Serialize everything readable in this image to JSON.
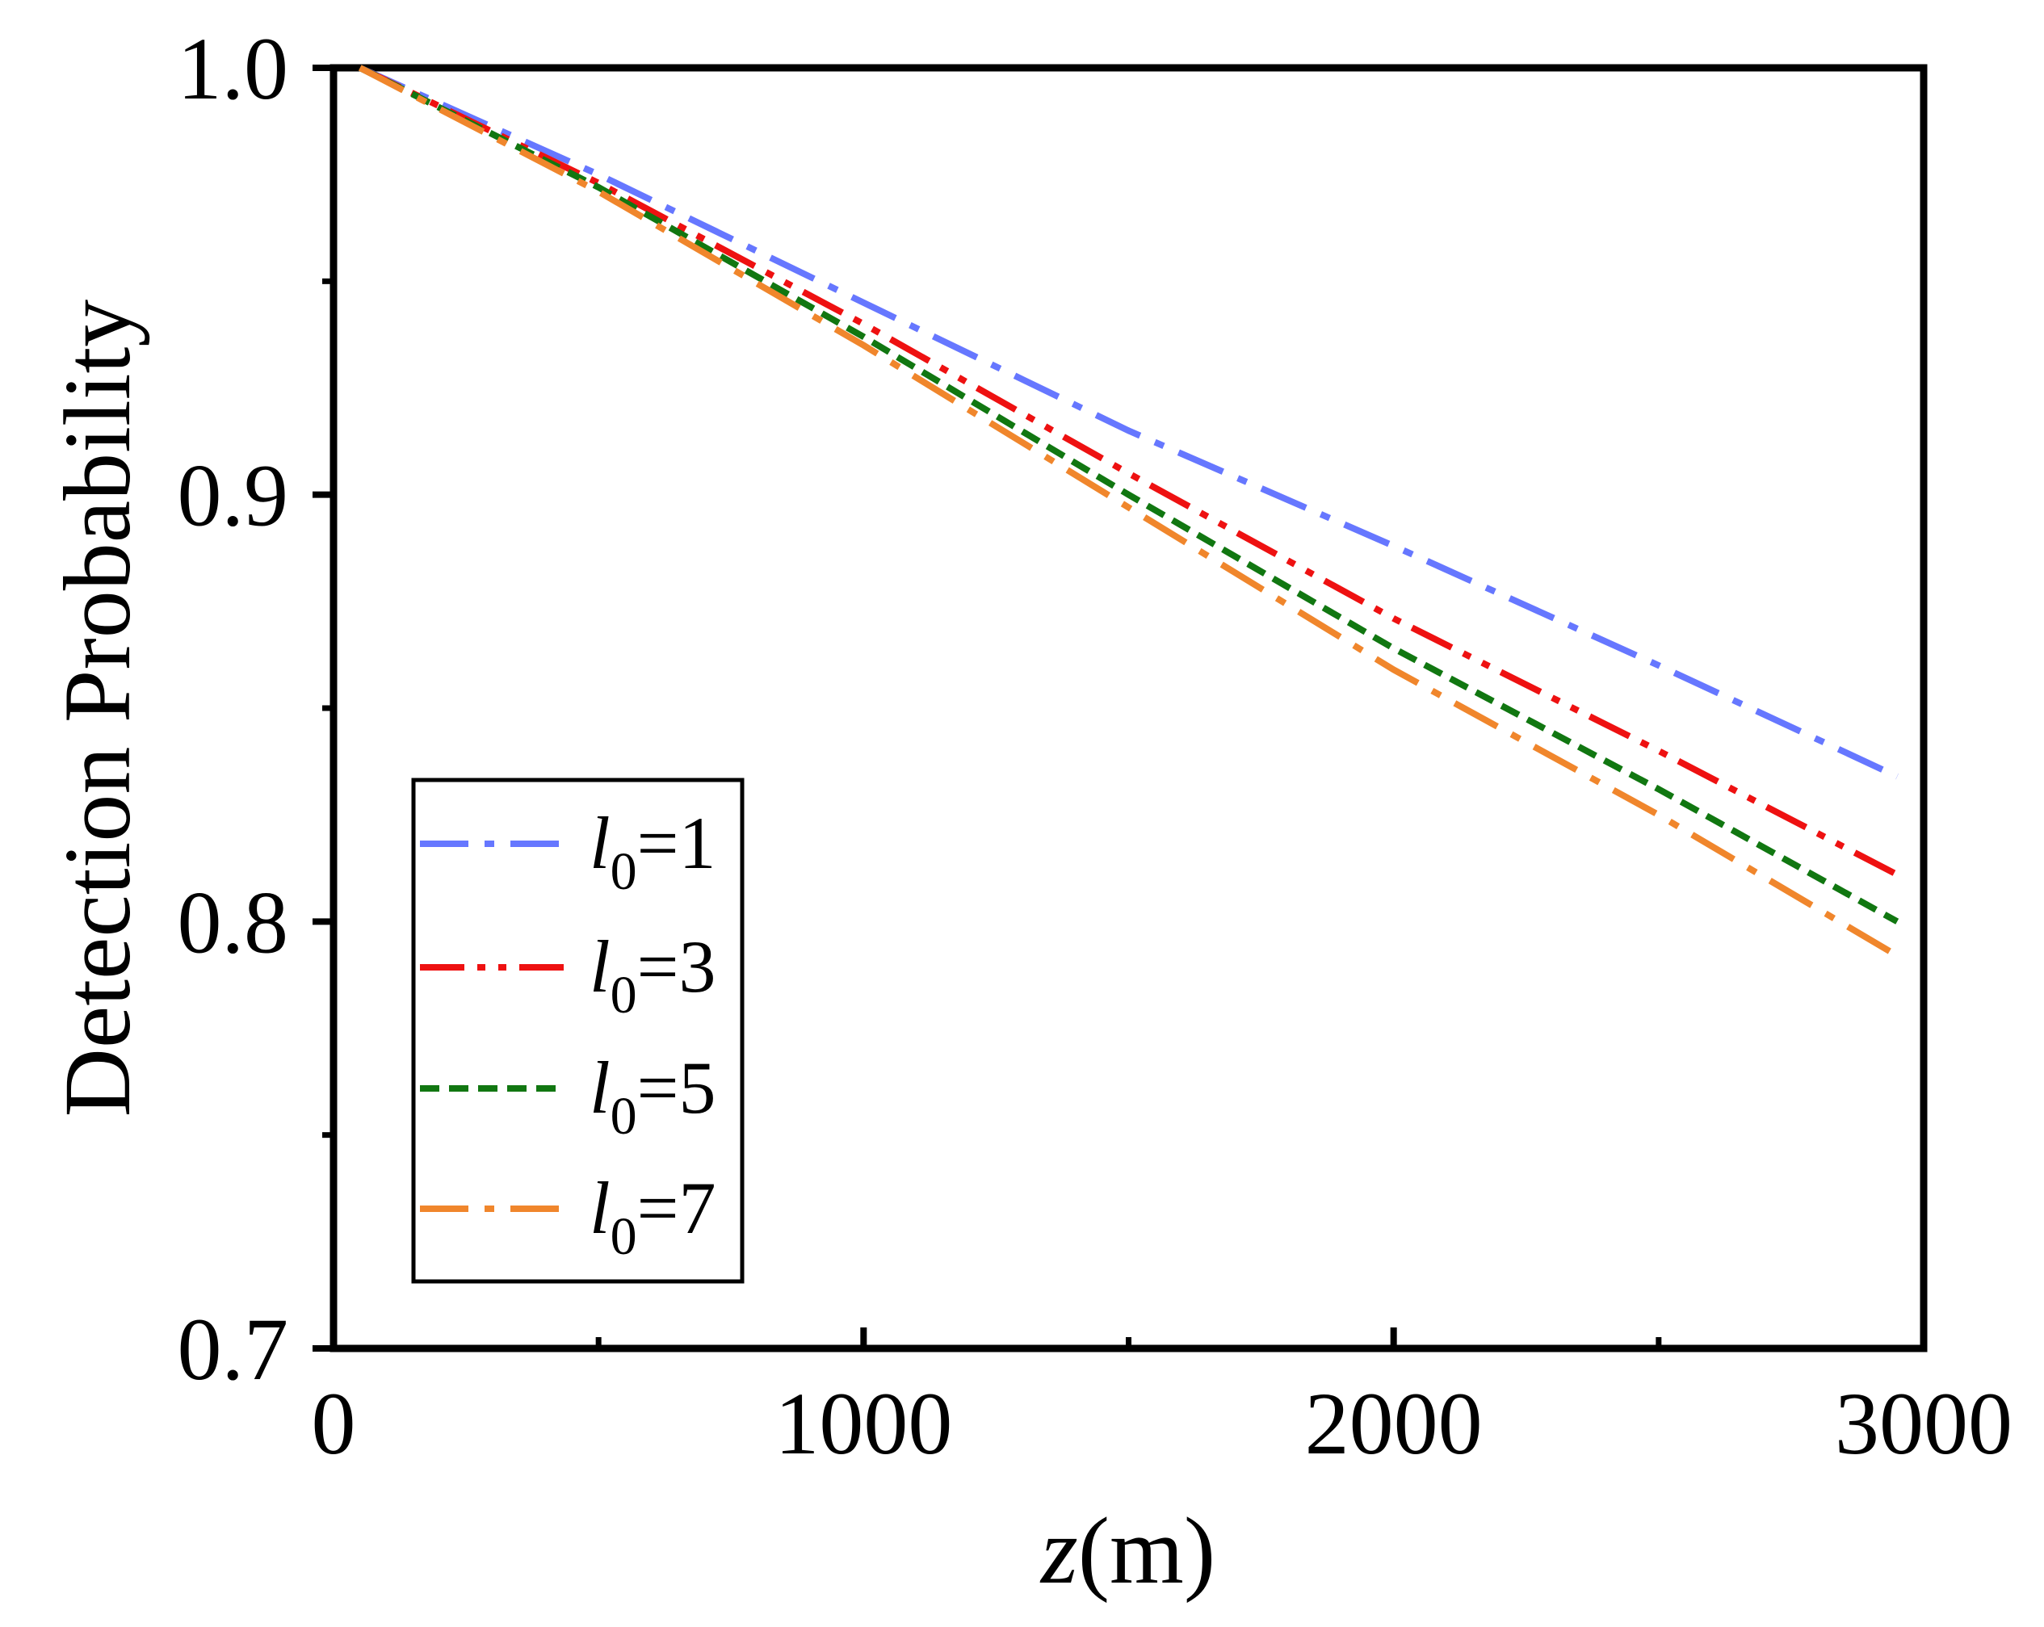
{
  "chart_data": {
    "type": "line",
    "title": "",
    "xlabel": "z",
    "xlabel_unit": "(m)",
    "ylabel": "Detection Probability",
    "xlim": [
      0,
      3000
    ],
    "ylim": [
      0.7,
      1.0
    ],
    "x_ticks": [
      0,
      1000,
      2000,
      3000
    ],
    "x_tick_labels": [
      "0",
      "1000",
      "2000",
      "3000"
    ],
    "y_ticks": [
      0.7,
      0.8,
      0.9,
      1.0
    ],
    "y_tick_labels": [
      "0.7",
      "0.8",
      "0.9",
      "1.0"
    ],
    "grid": false,
    "legend_position": "bottom-left",
    "x": [
      50,
      500,
      1000,
      1500,
      2000,
      2500,
      2950
    ],
    "series": [
      {
        "name": "l0=1",
        "legend_symbol": "l",
        "legend_subscript": "0",
        "legend_value": "=1",
        "color": "#6677ff",
        "dash": "dash-dot",
        "values": [
          1.0,
          0.975,
          0.945,
          0.915,
          0.888,
          0.86,
          0.834
        ]
      },
      {
        "name": "l0=3",
        "legend_symbol": "l",
        "legend_subscript": "0",
        "legend_value": "=3",
        "color": "#ee1111",
        "dash": "dash-dot-dot",
        "values": [
          1.0,
          0.973,
          0.94,
          0.905,
          0.871,
          0.84,
          0.811
        ]
      },
      {
        "name": "l0=5",
        "legend_symbol": "l",
        "legend_subscript": "0",
        "legend_value": "=5",
        "color": "#117711",
        "dash": "short-dash",
        "values": [
          1.0,
          0.972,
          0.937,
          0.9,
          0.864,
          0.831,
          0.8
        ]
      },
      {
        "name": "l0=7",
        "legend_symbol": "l",
        "legend_subscript": "0",
        "legend_value": "=7",
        "color": "#f0862c",
        "dash": "dash-dot",
        "values": [
          1.0,
          0.971,
          0.935,
          0.897,
          0.859,
          0.825,
          0.792
        ]
      }
    ]
  }
}
